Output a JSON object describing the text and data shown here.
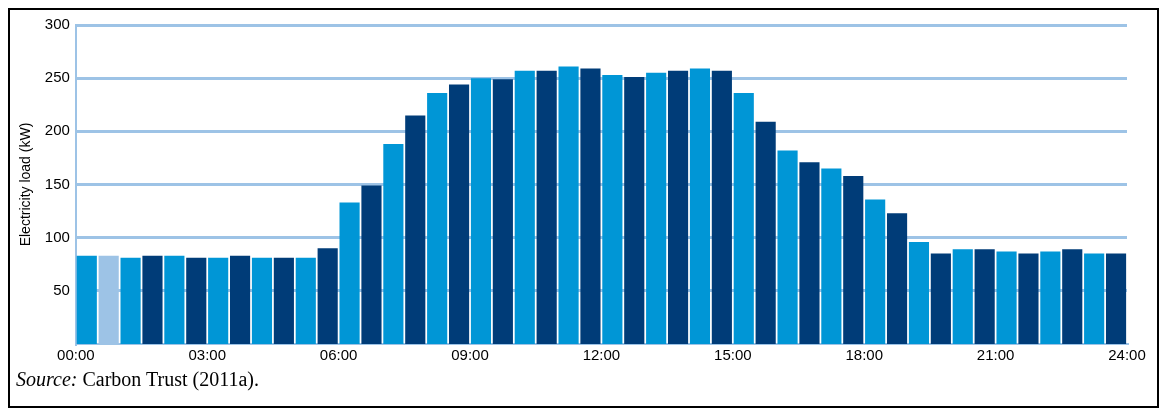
{
  "chart_data": {
    "type": "bar",
    "ylabel": "Electricity load (kW)",
    "x": [
      0.25,
      0.75,
      1.25,
      1.75,
      2.25,
      2.75,
      3.25,
      3.75,
      4.25,
      4.75,
      5.25,
      5.75,
      6.25,
      6.75,
      7.25,
      7.75,
      8.25,
      8.75,
      9.25,
      9.75,
      10.25,
      10.75,
      11.25,
      11.75,
      12.25,
      12.75,
      13.25,
      13.75,
      14.25,
      14.75,
      15.25,
      15.75,
      16.25,
      16.75,
      17.25,
      17.75,
      18.25,
      18.75,
      19.25,
      19.75,
      20.25,
      20.75,
      21.25,
      21.75,
      22.25,
      22.75,
      23.25,
      23.75
    ],
    "values": [
      83,
      83,
      81,
      83,
      83,
      81,
      81,
      83,
      81,
      81,
      81,
      90,
      133,
      149,
      188,
      215,
      236,
      244,
      250,
      249,
      257,
      257,
      261,
      259,
      253,
      251,
      255,
      257,
      259,
      257,
      236,
      209,
      182,
      171,
      165,
      158,
      136,
      123,
      96,
      85,
      89,
      89,
      87,
      85,
      87,
      89,
      85,
      85
    ],
    "colors": [
      "#0096d6",
      "#9dc3e6",
      "#0096d6",
      "#003c78",
      "#0096d6",
      "#003c78",
      "#0096d6",
      "#003c78",
      "#0096d6",
      "#003c78",
      "#0096d6",
      "#003c78",
      "#0096d6",
      "#003c78",
      "#0096d6",
      "#003c78",
      "#0096d6",
      "#003c78",
      "#0096d6",
      "#003c78",
      "#0096d6",
      "#003c78",
      "#0096d6",
      "#003c78",
      "#0096d6",
      "#003c78",
      "#0096d6",
      "#003c78",
      "#0096d6",
      "#003c78",
      "#0096d6",
      "#003c78",
      "#0096d6",
      "#003c78",
      "#0096d6",
      "#003c78",
      "#0096d6",
      "#003c78",
      "#0096d6",
      "#003c78",
      "#0096d6",
      "#003c78",
      "#0096d6",
      "#003c78",
      "#0096d6",
      "#003c78",
      "#0096d6",
      "#003c78"
    ],
    "xlim": [
      0,
      24
    ],
    "xticks": [
      {
        "value": 0,
        "label": "00:00"
      },
      {
        "value": 3,
        "label": "03:00"
      },
      {
        "value": 6,
        "label": "06:00"
      },
      {
        "value": 9,
        "label": "09:00"
      },
      {
        "value": 12,
        "label": "12:00"
      },
      {
        "value": 15,
        "label": "15:00"
      },
      {
        "value": 18,
        "label": "18:00"
      },
      {
        "value": 21,
        "label": "21:00"
      },
      {
        "value": 24,
        "label": "24:00"
      }
    ],
    "ylim": [
      0,
      300
    ],
    "yticks": [
      50,
      100,
      150,
      200,
      250,
      300
    ],
    "grid": "y",
    "annotations": [
      "Source: Carbon Trust (2011a)."
    ]
  }
}
